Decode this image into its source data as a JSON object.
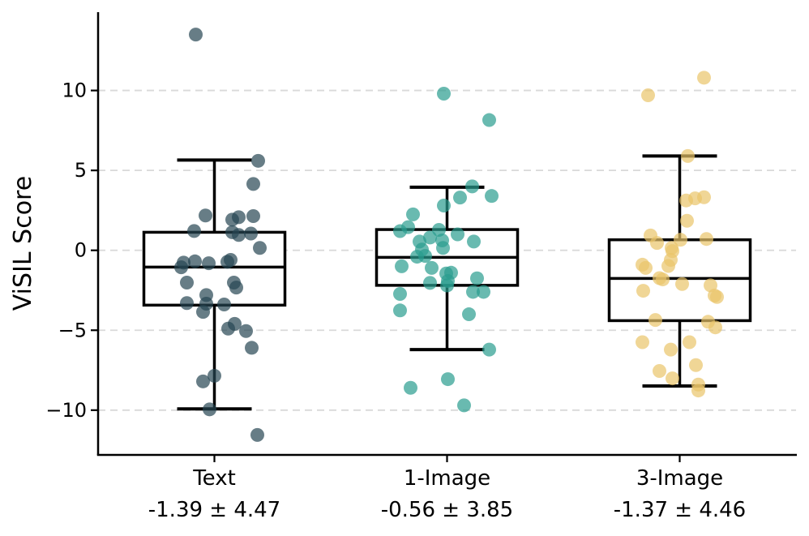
{
  "chart_data": {
    "type": "boxplot-strip",
    "ylabel": "ViSIL Score",
    "ylim": [
      -12.8,
      14.9
    ],
    "yticks": [
      -10,
      -5,
      0,
      5,
      10
    ],
    "ytick_labels": [
      "−10",
      "−5",
      "0",
      "5",
      "10"
    ],
    "grid": "horizontal-dashed",
    "grid_color": "#d9d9d9",
    "box_line_color": "#000000",
    "point_alpha": 0.7,
    "point_radius": 8.5,
    "groups": [
      {
        "label": "Text",
        "sublabel": "-1.39 ± 4.47",
        "mean": -1.39,
        "std": 4.47,
        "color": "#264653",
        "box": {
          "whisker_low": -9.92,
          "q1": -3.43,
          "median": -1.05,
          "q3": 1.13,
          "whisker_high": 5.65
        },
        "points": [
          [
            -23,
            13.5
          ],
          [
            54,
            5.6
          ],
          [
            48,
            4.15
          ],
          [
            -11,
            2.18
          ],
          [
            22,
            1.92
          ],
          [
            30,
            2.07
          ],
          [
            48,
            2.14
          ],
          [
            -25,
            1.21
          ],
          [
            22,
            1.13
          ],
          [
            30,
            0.96
          ],
          [
            45,
            1.05
          ],
          [
            56,
            0.15
          ],
          [
            -38,
            -0.77
          ],
          [
            -24,
            -0.69
          ],
          [
            -7,
            -0.81
          ],
          [
            16,
            -0.72
          ],
          [
            20,
            -0.6
          ],
          [
            -41,
            -1.06
          ],
          [
            -34,
            -2.02
          ],
          [
            24,
            -2.02
          ],
          [
            27,
            -2.33
          ],
          [
            -10,
            -2.8
          ],
          [
            -34,
            -3.3
          ],
          [
            -10,
            -3.34
          ],
          [
            12,
            -3.39
          ],
          [
            -14,
            -3.85
          ],
          [
            25,
            -4.6
          ],
          [
            17,
            -4.9
          ],
          [
            39,
            -5.05
          ],
          [
            46,
            -6.1
          ],
          [
            0,
            -7.85
          ],
          [
            -14,
            -8.2
          ],
          [
            -6,
            -9.95
          ],
          [
            53,
            -11.55
          ]
        ]
      },
      {
        "label": "1-Image",
        "sublabel": "-0.56 ± 3.85",
        "mean": -0.56,
        "std": 3.85,
        "color": "#2a9d8f",
        "box": {
          "whisker_low": -6.21,
          "q1": -2.19,
          "median": -0.44,
          "q3": 1.3,
          "whisker_high": 3.95
        },
        "points": [
          [
            -4,
            9.8
          ],
          [
            52,
            8.15
          ],
          [
            31,
            4.0
          ],
          [
            55,
            3.4
          ],
          [
            16,
            3.3
          ],
          [
            -4,
            2.8
          ],
          [
            -42,
            2.25
          ],
          [
            -48,
            1.45
          ],
          [
            -58,
            1.2
          ],
          [
            -10,
            1.28
          ],
          [
            13,
            1.0
          ],
          [
            -21,
            0.8
          ],
          [
            -34,
            0.55
          ],
          [
            -6,
            0.62
          ],
          [
            33,
            0.55
          ],
          [
            -31,
            0.05
          ],
          [
            -5,
            0.15
          ],
          [
            -37,
            -0.4
          ],
          [
            -27,
            -0.35
          ],
          [
            -56,
            -1.0
          ],
          [
            -19,
            -1.1
          ],
          [
            -1,
            -1.45
          ],
          [
            5,
            -1.4
          ],
          [
            1,
            -1.92
          ],
          [
            -21,
            -2.04
          ],
          [
            37,
            -1.75
          ],
          [
            0,
            -2.2
          ],
          [
            32,
            -2.6
          ],
          [
            45,
            -2.6
          ],
          [
            -58,
            -2.73
          ],
          [
            -58,
            -3.76
          ],
          [
            27,
            -4.0
          ],
          [
            52,
            -6.21
          ],
          [
            1,
            -8.06
          ],
          [
            -45,
            -8.6
          ],
          [
            21,
            -9.7
          ]
        ]
      },
      {
        "label": "3-Image",
        "sublabel": "-1.37 ± 4.46",
        "mean": -1.37,
        "std": 4.46,
        "color": "#e9c46a",
        "box": {
          "whisker_low": -8.49,
          "q1": -4.4,
          "median": -1.76,
          "q3": 0.66,
          "whisker_high": 5.9
        },
        "points": [
          [
            30,
            10.8
          ],
          [
            -39,
            9.7
          ],
          [
            10,
            5.9
          ],
          [
            19,
            3.25
          ],
          [
            30,
            3.32
          ],
          [
            8,
            3.12
          ],
          [
            9,
            1.85
          ],
          [
            -36,
            0.93
          ],
          [
            -28,
            0.46
          ],
          [
            1,
            0.66
          ],
          [
            33,
            0.71
          ],
          [
            -10,
            0.15
          ],
          [
            -9,
            -0.05
          ],
          [
            -11,
            -0.6
          ],
          [
            -46,
            -0.9
          ],
          [
            -14,
            -0.98
          ],
          [
            -42,
            -1.1
          ],
          [
            -25,
            -1.74
          ],
          [
            -21,
            -1.82
          ],
          [
            3,
            -2.11
          ],
          [
            38,
            -2.19
          ],
          [
            -45,
            -2.53
          ],
          [
            43,
            -2.83
          ],
          [
            46,
            -2.92
          ],
          [
            -30,
            -4.36
          ],
          [
            35,
            -4.47
          ],
          [
            44,
            -4.82
          ],
          [
            -46,
            -5.75
          ],
          [
            12,
            -5.75
          ],
          [
            -11,
            -6.21
          ],
          [
            20,
            -7.18
          ],
          [
            -25,
            -7.55
          ],
          [
            -9,
            -8.01
          ],
          [
            23,
            -8.4
          ],
          [
            23,
            -8.77
          ]
        ]
      }
    ]
  }
}
